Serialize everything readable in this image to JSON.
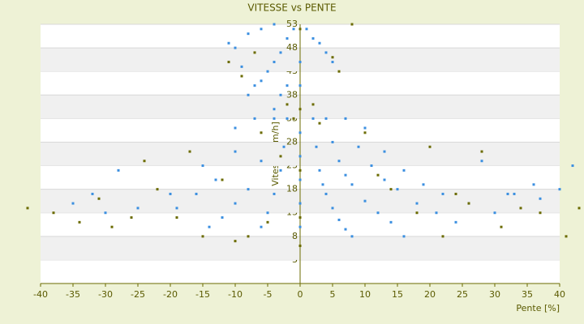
{
  "chart_data": {
    "type": "scatter",
    "title": "VITESSE vs PENTE",
    "x_label": "Pente [%]",
    "y_label": "Vitesse [km/h]",
    "xlim": [
      -40,
      40
    ],
    "ylim": [
      -2,
      53
    ],
    "xticks": [
      -40,
      -35,
      -30,
      -25,
      -20,
      -15,
      -10,
      -5,
      0,
      5,
      10,
      15,
      20,
      25,
      30,
      35,
      40
    ],
    "yticks": [
      3,
      8,
      13,
      18,
      23,
      28,
      33,
      38,
      43,
      48,
      53
    ],
    "grid": true,
    "series": [
      {
        "color": "#3b8fe0",
        "x": [
          2,
          2.5,
          3,
          3.5,
          4,
          5,
          6,
          7,
          8,
          4,
          5,
          6,
          7,
          8,
          10,
          12,
          14,
          16,
          7,
          9,
          11,
          13,
          15,
          18,
          21,
          24,
          10,
          13,
          16,
          19,
          22,
          26,
          30,
          28,
          32,
          36,
          40,
          42,
          33,
          37,
          -2,
          -2.5,
          -3,
          -4,
          -5,
          -6,
          -4,
          -6,
          -8,
          -10,
          -12,
          -14,
          -7,
          -10,
          -13,
          -16,
          -19,
          -10,
          -15,
          -20,
          -25,
          -30,
          -35,
          -28,
          -32,
          -1,
          -2,
          -3,
          -4,
          -5,
          -6,
          -7,
          -8,
          -9,
          -10,
          -11,
          -8,
          -6,
          -4,
          1,
          2,
          3,
          4,
          5,
          -3,
          -2,
          -4,
          0,
          0,
          0,
          0,
          0,
          0,
          0
        ],
        "y": [
          33,
          27,
          22,
          19,
          17,
          14,
          11.5,
          9.5,
          8,
          33,
          28,
          24,
          21,
          19,
          15.5,
          13,
          11,
          8,
          33,
          27,
          23,
          20,
          18,
          15,
          13,
          11,
          31,
          26,
          22,
          19,
          17,
          15,
          13,
          24,
          17,
          19,
          18,
          23,
          17,
          16,
          33,
          27,
          22,
          17,
          13,
          10,
          33,
          24,
          18,
          15,
          12,
          10,
          33,
          26,
          20,
          17,
          14,
          31,
          23,
          17,
          14,
          13,
          15,
          22,
          17,
          52,
          50,
          47,
          45,
          43,
          41,
          40,
          38,
          44,
          48,
          49,
          51,
          52,
          53,
          52,
          50,
          49,
          47,
          45,
          38,
          40,
          35,
          45,
          40,
          30,
          25,
          20,
          15,
          10
        ]
      },
      {
        "color": "#6b6b00",
        "x": [
          -42,
          -38,
          -34,
          -31,
          -29,
          -26,
          -24,
          -22,
          -19,
          -17,
          -15,
          -12,
          -10,
          -8,
          -6,
          -5,
          -3,
          -2,
          -1,
          -11,
          -9,
          -7,
          0,
          0,
          0,
          0,
          0,
          2,
          3,
          5,
          8,
          6,
          10,
          12,
          14,
          18,
          20,
          22,
          24,
          26,
          28,
          31,
          34,
          37,
          41,
          43
        ],
        "y": [
          14,
          13,
          11,
          16,
          10,
          12,
          24,
          18,
          12,
          26,
          8,
          20,
          7,
          8,
          30,
          11,
          25,
          36,
          33,
          45,
          42,
          47,
          52,
          35,
          22,
          12,
          6,
          36,
          32,
          46,
          53,
          43,
          30,
          21,
          18,
          13,
          27,
          8,
          17,
          15,
          26,
          10,
          14,
          13,
          8,
          14
        ]
      }
    ]
  }
}
